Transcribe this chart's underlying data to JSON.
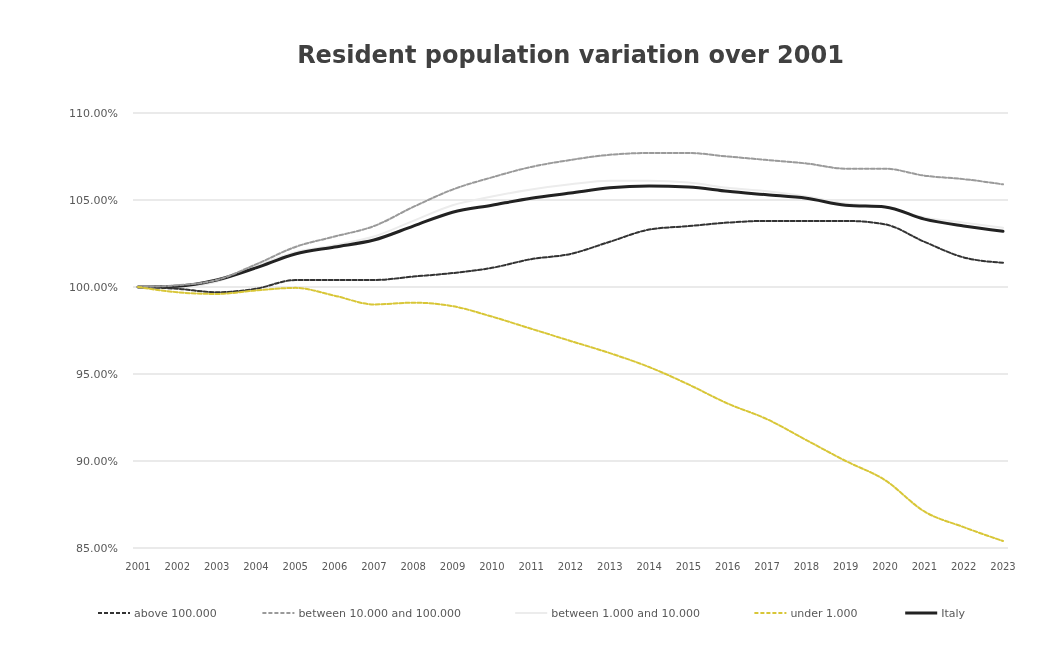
{
  "chart_data": {
    "type": "line",
    "title": "Resident population variation over 2001",
    "categories": [
      "2001",
      "2002",
      "2003",
      "2004",
      "2005",
      "2006",
      "2007",
      "2008",
      "2009",
      "2010",
      "2011",
      "2012",
      "2013",
      "2014",
      "2015",
      "2016",
      "2017",
      "2018",
      "2019",
      "2020",
      "2021",
      "2022",
      "2023"
    ],
    "series": [
      {
        "name": "above 100.000",
        "color": "#333333",
        "line_style": "dashed",
        "values": [
          100,
          99.9,
          99.7,
          99.9,
          100.4,
          100.4,
          100.4,
          100.6,
          100.8,
          101.1,
          101.6,
          101.9,
          102.6,
          103.3,
          103.5,
          103.7,
          103.8,
          103.8,
          103.8,
          103.6,
          102.6,
          101.7,
          101.4
        ]
      },
      {
        "name": "between 10.000 and 100.000",
        "color": "#9a9a9a",
        "line_style": "dashed",
        "values": [
          100,
          100.1,
          100.4,
          101.3,
          102.3,
          102.9,
          103.5,
          104.6,
          105.6,
          106.3,
          106.9,
          107.3,
          107.6,
          107.7,
          107.7,
          107.5,
          107.3,
          107.1,
          106.8,
          106.8,
          106.4,
          106.2,
          105.9
        ]
      },
      {
        "name": "between 1.000 and 10.000",
        "color": "#ececec",
        "line_style": "solid",
        "values": [
          100,
          100,
          100.3,
          101.2,
          102,
          102.4,
          102.9,
          103.8,
          104.7,
          105.2,
          105.6,
          105.9,
          106.1,
          106.1,
          106,
          105.7,
          105.5,
          105.2,
          104.8,
          104.6,
          104,
          103.7,
          103.4
        ]
      },
      {
        "name": "under 1.000",
        "color": "#d8c637",
        "line_style": "dashed",
        "values": [
          100,
          99.7,
          99.6,
          99.8,
          99.95,
          99.5,
          99,
          99.1,
          98.9,
          98.3,
          97.6,
          96.9,
          96.2,
          95.4,
          94.4,
          93.3,
          92.4,
          91.2,
          90,
          88.9,
          87.1,
          86.2,
          85.4
        ]
      },
      {
        "name": "Italy",
        "color": "#222222",
        "line_style": "solid",
        "values": [
          100,
          100.05,
          100.4,
          101.1,
          101.9,
          102.3,
          102.7,
          103.5,
          104.3,
          104.7,
          105.1,
          105.4,
          105.7,
          105.8,
          105.75,
          105.5,
          105.3,
          105.1,
          104.7,
          104.6,
          103.9,
          103.5,
          103.2
        ]
      }
    ],
    "ylim": [
      85,
      110
    ],
    "yticks": [
      {
        "value": 85,
        "label": "85.00%"
      },
      {
        "value": 90,
        "label": "90.00%"
      },
      {
        "value": 95,
        "label": "95.00%"
      },
      {
        "value": 100,
        "label": "100.00%"
      },
      {
        "value": 105,
        "label": "105.00%"
      },
      {
        "value": 110,
        "label": "110.00%"
      }
    ],
    "grid": "y",
    "legend": "bottom",
    "marker": "none"
  }
}
